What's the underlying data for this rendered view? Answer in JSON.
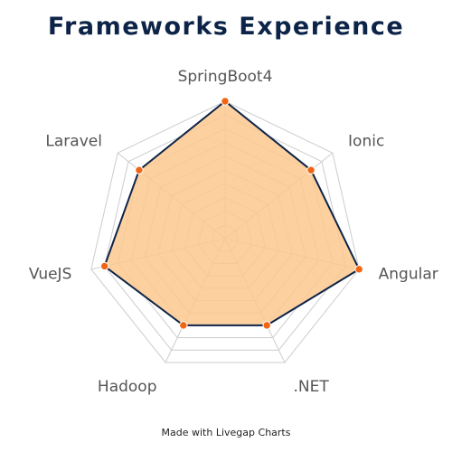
{
  "page": {
    "footer": "Made with Livegap Charts"
  },
  "colors": {
    "title": "#0d2448",
    "fill": "#fdc98e",
    "line": "#0d2448",
    "point": "#f06414",
    "grid": "#cccccc",
    "label": "#555555"
  },
  "chart_data": {
    "type": "radar",
    "title": "Frameworks Experience",
    "categories": [
      "SpringBoot4",
      "Ionic",
      "Angular",
      ".NET",
      "Hadoop",
      "VueJS",
      "Laravel"
    ],
    "series": [
      {
        "values": [
          10,
          8,
          10,
          7,
          7,
          9,
          8
        ]
      }
    ],
    "rmax": 10,
    "grid_levels": 10,
    "grid": true,
    "legend": "none"
  }
}
